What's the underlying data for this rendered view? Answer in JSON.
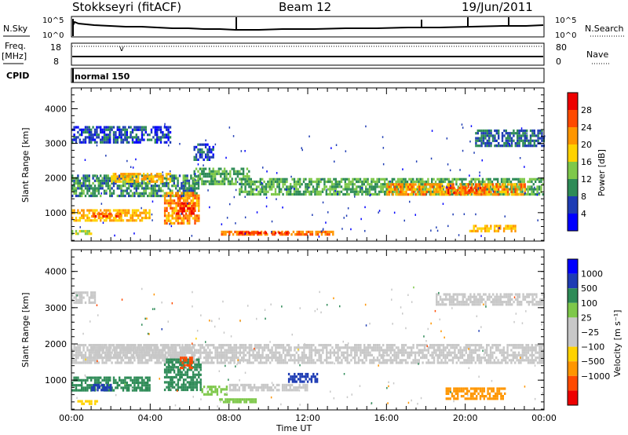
{
  "header": {
    "title": "Stokkseyri (fitACF)",
    "beam": "Beam 12",
    "date": "19/Jun/2011"
  },
  "top_panels": {
    "nsky_label": "N.Sky",
    "nsearch_label": "N.Search",
    "nsky_ticks": [
      "10^5",
      "10^0"
    ],
    "nsearch_ticks": [
      "10^5",
      "10^0"
    ],
    "freq_label_line1": "Freq.",
    "freq_label_line2": "[MHz]",
    "freq_ticks": [
      "18",
      "8"
    ],
    "nave_label": "Nave",
    "nave_ticks": [
      "80",
      "0"
    ],
    "cpid_label": "CPID",
    "cpid_value": "normal 150"
  },
  "colors": {
    "power_scale": [
      "#0000ff",
      "#1e3cb4",
      "#2e8b57",
      "#7ec84a",
      "#ffd200",
      "#ff9600",
      "#ff4a00",
      "#ee0000"
    ],
    "velocity_scale": [
      "#0000ff",
      "#1e3cb4",
      "#2e8b57",
      "#7ec84a",
      "#c8c8c8",
      "#c8c8c8",
      "#ffd200",
      "#ff9600",
      "#ff4a00",
      "#ee0000"
    ],
    "ground_scatter": "#c8c8c8"
  },
  "chart_data": [
    {
      "type": "heatmap",
      "name": "power",
      "xlabel": "Time UT",
      "ylabel": "Slant Range [km]",
      "x_ticks": [
        "00:00",
        "04:00",
        "08:00",
        "12:00",
        "16:00",
        "20:00",
        "00:00"
      ],
      "xlim": [
        0,
        24
      ],
      "ylim": [
        180,
        4600
      ],
      "y_ticks": [
        "1000",
        "2000",
        "3000",
        "4000"
      ],
      "colorbar": {
        "label": "Power [dB]",
        "ticks": [
          "4",
          "8",
          "12",
          "16",
          "20",
          "24",
          "28"
        ],
        "range": [
          0,
          30
        ]
      },
      "regions": [
        {
          "t": [
            0,
            6.5
          ],
          "r": [
            1500,
            2100
          ],
          "v": 10
        },
        {
          "t": [
            2,
            5
          ],
          "r": [
            1900,
            2150
          ],
          "v": 20
        },
        {
          "t": [
            6.2,
            9
          ],
          "r": [
            1800,
            2300
          ],
          "v": 12
        },
        {
          "t": [
            8.5,
            24
          ],
          "r": [
            1500,
            2000
          ],
          "v": 12
        },
        {
          "t": [
            16,
            23
          ],
          "r": [
            1550,
            1850
          ],
          "v": 22
        },
        {
          "t": [
            19,
            21
          ],
          "r": [
            1600,
            1750
          ],
          "v": 26
        },
        {
          "t": [
            0,
            4
          ],
          "r": [
            800,
            1100
          ],
          "v": 20
        },
        {
          "t": [
            1,
            2.5
          ],
          "r": [
            900,
            1000
          ],
          "v": 26
        },
        {
          "t": [
            4.7,
            6.5
          ],
          "r": [
            700,
            1600
          ],
          "v": 22
        },
        {
          "t": [
            5.3,
            6.2
          ],
          "r": [
            1000,
            1300
          ],
          "v": 28
        },
        {
          "t": [
            7.5,
            13.3
          ],
          "r": [
            380,
            480
          ],
          "v": 24
        },
        {
          "t": [
            8.5,
            11
          ],
          "r": [
            400,
            450
          ],
          "v": 28
        },
        {
          "t": [
            0,
            1
          ],
          "r": [
            400,
            500
          ],
          "v": 16
        },
        {
          "t": [
            0,
            5
          ],
          "r": [
            3000,
            3500
          ],
          "v": 6
        },
        {
          "t": [
            20.5,
            24
          ],
          "r": [
            2900,
            3400
          ],
          "v": 8
        },
        {
          "t": [
            20.2,
            22.5
          ],
          "r": [
            500,
            650
          ],
          "v": 20
        },
        {
          "t": [
            6.2,
            7.2
          ],
          "r": [
            2500,
            3000
          ],
          "v": 6
        }
      ]
    },
    {
      "type": "heatmap",
      "name": "velocity",
      "xlabel": "Time UT",
      "ylabel": "Slant Range [km]",
      "x_ticks": [
        "00:00",
        "04:00",
        "08:00",
        "12:00",
        "16:00",
        "20:00",
        "00:00"
      ],
      "xlim": [
        0,
        24
      ],
      "ylim": [
        180,
        4600
      ],
      "y_ticks": [
        "1000",
        "2000",
        "3000",
        "4000"
      ],
      "colorbar": {
        "label": "Velocity [m s⁻¹]",
        "ticks": [
          "1000",
          "500",
          "100",
          "25",
          "−25",
          "−100",
          "−500",
          "−1000"
        ]
      },
      "regions": [
        {
          "t": [
            0,
            24
          ],
          "r": [
            1500,
            2000
          ],
          "v": 0
        },
        {
          "t": [
            1,
            6.2
          ],
          "r": [
            1600,
            2000
          ],
          "v": 0
        },
        {
          "t": [
            0,
            1.2
          ],
          "r": [
            3150,
            3450
          ],
          "v": 0
        },
        {
          "t": [
            18.5,
            24
          ],
          "r": [
            3100,
            3400
          ],
          "v": 0
        },
        {
          "t": [
            0,
            4
          ],
          "r": [
            750,
            1100
          ],
          "v": 150
        },
        {
          "t": [
            1,
            2
          ],
          "r": [
            750,
            900
          ],
          "v": 700
        },
        {
          "t": [
            4.7,
            6.6
          ],
          "r": [
            700,
            1600
          ],
          "v": 300
        },
        {
          "t": [
            5.5,
            6.1
          ],
          "r": [
            1350,
            1650
          ],
          "v": -500
        },
        {
          "t": [
            6.6,
            8
          ],
          "r": [
            600,
            850
          ],
          "v": 80
        },
        {
          "t": [
            7.5,
            9.5
          ],
          "r": [
            400,
            500
          ],
          "v": 60
        },
        {
          "t": [
            0.3,
            1.3
          ],
          "r": [
            350,
            450
          ],
          "v": -80
        },
        {
          "t": [
            11,
            12.5
          ],
          "r": [
            950,
            1200
          ],
          "v": 600
        },
        {
          "t": [
            19,
            22
          ],
          "r": [
            500,
            800
          ],
          "v": -300
        },
        {
          "t": [
            8,
            12
          ],
          "r": [
            700,
            900
          ],
          "v": 0
        }
      ]
    }
  ]
}
